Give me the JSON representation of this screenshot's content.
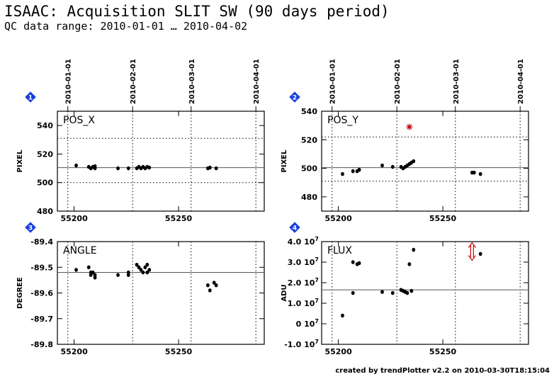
{
  "header": {
    "title": "ISAAC: Acquisition SLIT SW (90 days period)",
    "subtitle": "QC data range: 2010-01-01 … 2010-04-02"
  },
  "footer": {
    "credit": "created by trendPlotter v2.2 on 2010-03-30T18:15:04"
  },
  "colors": {
    "marker": "#000000",
    "outlier": "#cc0000",
    "panel_badge": "#1a3ee0",
    "grid": "#000000"
  },
  "chart_data": [
    {
      "panel": "1",
      "type": "scatter",
      "title": "POS_X",
      "ylabel": "PIXEL",
      "xlim": [
        55192,
        55291
      ],
      "ylim": [
        480,
        550
      ],
      "yticks": [
        480,
        500,
        520,
        540
      ],
      "yticklabels": [
        "480",
        "500",
        "520",
        "540"
      ],
      "xticks": [
        55200,
        55250
      ],
      "xticklabels": [
        "55200",
        "55250"
      ],
      "date_ticks": [
        "2010-01-01",
        "2010-02-01",
        "2010-03-01",
        "2010-04-01"
      ],
      "date_tick_mjd": [
        55197,
        55228,
        55256,
        55287
      ],
      "mean_line": 510.5,
      "threshold_lines": [
        500,
        531
      ],
      "points": [
        [
          55201,
          512
        ],
        [
          55207,
          511
        ],
        [
          55208,
          510
        ],
        [
          55209,
          511
        ],
        [
          55210,
          510
        ],
        [
          55210,
          511.5
        ],
        [
          55221,
          510
        ],
        [
          55226,
          510
        ],
        [
          55230,
          510
        ],
        [
          55231,
          511
        ],
        [
          55232,
          510
        ],
        [
          55233,
          511
        ],
        [
          55234,
          510
        ],
        [
          55235,
          511
        ],
        [
          55236,
          510.5
        ],
        [
          55264,
          510
        ],
        [
          55265,
          510.5
        ],
        [
          55268,
          510
        ]
      ]
    },
    {
      "panel": "2",
      "type": "scatter",
      "title": "POS_Y",
      "ylabel": "PIXEL",
      "xlim": [
        55192,
        55291
      ],
      "ylim": [
        470,
        540
      ],
      "yticks": [
        480,
        500,
        520,
        540
      ],
      "yticklabels": [
        "480",
        "500",
        "520",
        "540"
      ],
      "xticks": [
        55200,
        55250
      ],
      "xticklabels": [
        "55200",
        "55250"
      ],
      "date_ticks": [
        "2010-01-01",
        "2010-02-01",
        "2010-03-01",
        "2010-04-01"
      ],
      "date_tick_mjd": [
        55197,
        55228,
        55256,
        55287
      ],
      "mean_line": 500.5,
      "threshold_lines": [
        491,
        522
      ],
      "points": [
        [
          55202,
          496
        ],
        [
          55207,
          498
        ],
        [
          55209,
          498
        ],
        [
          55210,
          499
        ],
        [
          55221,
          502
        ],
        [
          55226,
          501
        ],
        [
          55230,
          501
        ],
        [
          55231,
          500
        ],
        [
          55232,
          501
        ],
        [
          55233,
          502
        ],
        [
          55234,
          503
        ],
        [
          55235,
          504
        ],
        [
          55236,
          505
        ],
        [
          55264,
          497
        ],
        [
          55265,
          497
        ],
        [
          55268,
          496
        ]
      ],
      "outliers": [
        [
          55234,
          529
        ]
      ]
    },
    {
      "panel": "3",
      "type": "scatter",
      "title": "ANGLE",
      "ylabel": "DEGREE",
      "xlim": [
        55192,
        55291
      ],
      "ylim": [
        -89.8,
        -89.4
      ],
      "yticks": [
        -89.8,
        -89.7,
        -89.6,
        -89.5,
        -89.4
      ],
      "yticklabels": [
        "-89.8",
        "-89.7",
        "-89.6",
        "-89.5",
        "-89.4"
      ],
      "xticks": [
        55200,
        55250
      ],
      "xticklabels": [
        "55200",
        "55250"
      ],
      "date_ticks": [
        "2010-01-01",
        "2010-02-01",
        "2010-03-01",
        "2010-04-01"
      ],
      "date_tick_mjd": [
        55197,
        55228,
        55256,
        55287
      ],
      "mean_line": -89.52,
      "points": [
        [
          55201,
          -89.51
        ],
        [
          55207,
          -89.5
        ],
        [
          55208,
          -89.52
        ],
        [
          55208,
          -89.53
        ],
        [
          55209,
          -89.52
        ],
        [
          55210,
          -89.53
        ],
        [
          55210,
          -89.54
        ],
        [
          55221,
          -89.53
        ],
        [
          55226,
          -89.52
        ],
        [
          55226,
          -89.53
        ],
        [
          55230,
          -89.49
        ],
        [
          55231,
          -89.5
        ],
        [
          55232,
          -89.51
        ],
        [
          55233,
          -89.52
        ],
        [
          55234,
          -89.5
        ],
        [
          55235,
          -89.49
        ],
        [
          55235,
          -89.52
        ],
        [
          55236,
          -89.51
        ],
        [
          55264,
          -89.57
        ],
        [
          55265,
          -89.59
        ],
        [
          55267,
          -89.56
        ],
        [
          55268,
          -89.57
        ]
      ]
    },
    {
      "panel": "4",
      "type": "scatter",
      "title": "FLUX",
      "ylabel": "ADU",
      "xlim": [
        55192,
        55291
      ],
      "ylim": [
        -10000000,
        40000000
      ],
      "yticks": [
        -10000000,
        0,
        10000000,
        20000000,
        30000000,
        40000000
      ],
      "yticklabels": [
        "-1.0",
        "0",
        "1.0",
        "2.0",
        "3.0",
        "4.0"
      ],
      "ytick_exponent": "10",
      "ytick_power": "7",
      "xticks": [
        55200,
        55250
      ],
      "xticklabels": [
        "55200",
        "55250"
      ],
      "date_ticks": [
        "2010-01-01",
        "2010-02-01",
        "2010-03-01",
        "2010-04-01"
      ],
      "date_tick_mjd": [
        55197,
        55228,
        55256,
        55287
      ],
      "mean_line": 16500000,
      "points": [
        [
          55202,
          4000000
        ],
        [
          55207,
          30000000
        ],
        [
          55207,
          15000000
        ],
        [
          55209,
          29000000
        ],
        [
          55210,
          29500000
        ],
        [
          55221,
          15500000
        ],
        [
          55226,
          15000000
        ],
        [
          55230,
          16500000
        ],
        [
          55231,
          16000000
        ],
        [
          55232,
          15500000
        ],
        [
          55233,
          15000000
        ],
        [
          55234,
          29000000
        ],
        [
          55235,
          16000000
        ],
        [
          55236,
          36000000
        ],
        [
          55268,
          34000000
        ]
      ],
      "outlier_arrows": [
        [
          55264,
          35000000
        ]
      ]
    }
  ]
}
